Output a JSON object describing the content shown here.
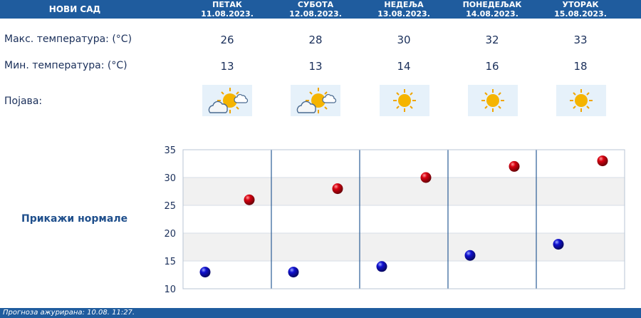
{
  "header": {
    "city": "НОВИ САД",
    "days": [
      {
        "name": "ПЕТАК",
        "date": "11.08.2023."
      },
      {
        "name": "СУБОТА",
        "date": "12.08.2023."
      },
      {
        "name": "НЕДЕЉА",
        "date": "13.08.2023."
      },
      {
        "name": "ПОНЕДЕЉАК",
        "date": "14.08.2023."
      },
      {
        "name": "УТОРАК",
        "date": "15.08.2023."
      }
    ]
  },
  "rows": {
    "max_label": "Макс. температура: (°C)",
    "min_label": "Мин. температура: (°C)",
    "icon_label": "Појава:",
    "max": [
      "26",
      "28",
      "30",
      "32",
      "33"
    ],
    "min": [
      "13",
      "13",
      "14",
      "16",
      "18"
    ],
    "icons": [
      "partly-cloudy-icon",
      "partly-cloudy-icon",
      "sun-icon",
      "sun-icon",
      "sun-icon"
    ]
  },
  "normals_link": "Прикажи нормале",
  "footer": "Прогноза ажурирана:  10.08.  11:27.",
  "chart_data": {
    "type": "scatter",
    "title": "",
    "xlabel": "",
    "ylabel": "",
    "ylim": [
      10,
      35
    ],
    "yticks": [
      10,
      15,
      20,
      25,
      30,
      35
    ],
    "grid": true,
    "series": [
      {
        "values": [
          13,
          13,
          14,
          16,
          18
        ],
        "color": "#1010c0"
      },
      {
        "values": [
          26,
          28,
          30,
          32,
          33
        ],
        "color": "#c00010"
      }
    ],
    "categories": [
      "11.08.2023.",
      "12.08.2023.",
      "13.08.2023.",
      "14.08.2023.",
      "15.08.2023."
    ]
  }
}
